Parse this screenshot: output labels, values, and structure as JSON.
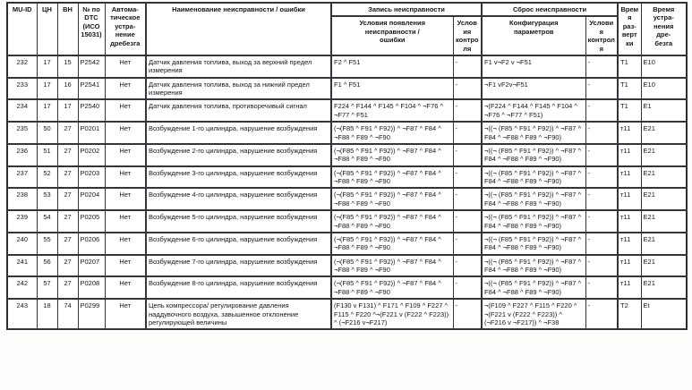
{
  "table": {
    "headers": {
      "muid": "MU-ID",
      "cn": "ЦН",
      "vn": "ВН",
      "dtc": "№ по\nDTC\n(ИСО\n15031)",
      "auto": "Автома-\nтическое\nустра-\nнение\nдребезга",
      "name": "Наименование неисправности / ошибки",
      "record_group": "Запись неисправности",
      "reset_group": "Сброс неисправности",
      "appear": "Условия появления\nнеисправности /\nошибки",
      "appear_ctrl": "Условия\nконтроля",
      "reset": "Конфигурация\nпараметров",
      "reset_ctrl": "Условия\nконтроля",
      "t_scan": "Время\nраз-\nвертки",
      "t_deb": "Время\nустра-\nнения\nдре-\nбезга"
    },
    "rows": [
      {
        "muid": "232",
        "cn": "17",
        "vn": "15",
        "dtc": "P2542",
        "auto": "Нет",
        "name": "Датчик давления топлива, выход за верхний предел измерения",
        "appear": "F2 ^ F51",
        "appear_ctrl": "-",
        "reset": "F1 v¬F2 v ¬F51",
        "reset_ctrl": "-",
        "t_scan": "T1",
        "t_deb": "E10"
      },
      {
        "muid": "233",
        "cn": "17",
        "vn": "16",
        "dtc": "P2541",
        "auto": "Нет",
        "name": "Датчик давления топлива, выход за нижний предел измерения",
        "appear": "F1 ^ F51",
        "appear_ctrl": "-",
        "reset": "¬F1 vF2v¬F51",
        "reset_ctrl": "-",
        "t_scan": "T1",
        "t_deb": "E10"
      },
      {
        "muid": "234",
        "cn": "17",
        "vn": "17",
        "dtc": "P2540",
        "auto": "Нет",
        "name": "Датчик давления топлива, противоречивый сигнал",
        "appear": "F224 ^ F144 ^ F145 ^ F104 ^ ¬F76 ^ ¬F77 ^ F51",
        "appear_ctrl": "-",
        "reset": "¬(F224 ^ F144 ^ F145 ^ F104 ^ ¬F76 ^ ¬F77 ^ F51)",
        "reset_ctrl": "-",
        "t_scan": "T1",
        "t_deb": "E1"
      },
      {
        "muid": "235",
        "cn": "50",
        "vn": "27",
        "dtc": "P0201",
        "auto": "Нет",
        "name": "Возбуждение 1-го цилиндра, нарушение возбуждения",
        "appear": "(¬(F85 ^ F91 ^ F92)) ^ ¬F87 ^ F84 ^ ¬F88 ^ F89 ^ ¬F90",
        "appear_ctrl": "-",
        "reset": "¬((¬ (F85 ^ F91 ^ F92)) ^ ¬F87 ^ F84 ^ ¬F88 ^ F89 ^ ¬F90)",
        "reset_ctrl": "-",
        "t_scan": "т11",
        "t_deb": "E21"
      },
      {
        "muid": "236",
        "cn": "51",
        "vn": "27",
        "dtc": "P0202",
        "auto": "Нет",
        "name": "Возбуждение 2-го цилиндра, нарушение возбуждения",
        "appear": "(¬(F85 ^ F91 ^ F92)) ^ ¬F87 ^ F84 ^ ¬F88 ^ F89 ^ ¬F90",
        "appear_ctrl": "-",
        "reset": "¬((¬ (F85 ^ F91 ^ F92)) ^ ¬F87 ^ F84 ^ ¬F88 ^ F89 ^ ¬F90)",
        "reset_ctrl": "-",
        "t_scan": "т11",
        "t_deb": "E21"
      },
      {
        "muid": "237",
        "cn": "52",
        "vn": "27",
        "dtc": "P0203",
        "auto": "Нет",
        "name": "Возбуждение 3-го цилиндра, нарушение возбуждения",
        "appear": "(¬(F85 ^ F91 ^ F92)) ^ ¬F87 ^ F84 ^ ¬F88 ^ F89 ^ ¬F90",
        "appear_ctrl": "-",
        "reset": "¬((¬ (F85 ^ F91 ^ F92)) ^ ¬F87 ^ F84 ^ ¬F88 ^ F89 ^ ¬F90)",
        "reset_ctrl": "-",
        "t_scan": "т11",
        "t_deb": "E21"
      },
      {
        "muid": "238",
        "cn": "53",
        "vn": "27",
        "dtc": "P0204",
        "auto": "Нет",
        "name": "Возбуждение 4-го цилиндра, нарушение возбуждения",
        "appear": "(¬(F85 ^ F91 ^ F92)) ^ ¬F87 ^ F84 ^ ¬F88 ^ F89 ^ ¬F90",
        "appear_ctrl": "-",
        "reset": "¬((¬ (F85 ^ F91 ^ F92)) ^ ¬F87 ^ F84 ^ ¬F88 ^ F89 ^ ¬F90)",
        "reset_ctrl": "-",
        "t_scan": "т11",
        "t_deb": "E21"
      },
      {
        "muid": "239",
        "cn": "54",
        "vn": "27",
        "dtc": "P0205",
        "auto": "Нет",
        "name": "Возбуждение 5-го цилиндра, нарушение возбуждения",
        "appear": "(¬(F85 ^ F91 ^ F92)) ^ ¬F87 ^ F84 ^ ¬F88 ^ F89 ^ ¬F90",
        "appear_ctrl": "-",
        "reset": "¬((¬ (F85 ^ F91 ^ F92)) ^ ¬F87 ^ F84 ^ ¬F88 ^ F89 ^ ¬F90)",
        "reset_ctrl": "-",
        "t_scan": "т11",
        "t_deb": "E21"
      },
      {
        "muid": "240",
        "cn": "55",
        "vn": "27",
        "dtc": "P0206",
        "auto": "Нет",
        "name": "Возбуждение 6-го цилиндра, нарушение возбуждения",
        "appear": "(¬(F85 ^ F91 ^ F92)) ^ ¬F87 ^ F84 ^ ¬F88 ^ F89 ^ ¬F90",
        "appear_ctrl": "-",
        "reset": "¬((¬ (F85 ^ F91 ^ F92)) ^ ¬F87 ^ F84 ^ ¬F88 ^ F89 ^ ¬F90)",
        "reset_ctrl": "-",
        "t_scan": "т11",
        "t_deb": "E21"
      },
      {
        "muid": "241",
        "cn": "56",
        "vn": "27",
        "dtc": "P0207",
        "auto": "Нет",
        "name": "Возбуждение 7-го цилиндра, нарушение возбуждения",
        "appear": "(¬(F85 ^ F91 ^ F92)) ^ ¬F87 ^ F84 ^ ¬F88 ^ F89 ^ ¬F90",
        "appear_ctrl": "-",
        "reset": "¬((¬ (F85 ^ F91 ^ F92)) ^ ¬F87 ^ F84 ^ ¬F88 ^ F89 ^ ¬F90)",
        "reset_ctrl": "-",
        "t_scan": "т11",
        "t_deb": "E21"
      },
      {
        "muid": "242",
        "cn": "57",
        "vn": "27",
        "dtc": "P0208",
        "auto": "Нет",
        "name": "Возбуждение 8-го цилиндра, нарушение возбуждения",
        "appear": "(¬(F85 ^ F91 ^ F92)) ^ ¬F87 ^ F84 ^ ¬F88 ^ F89 ^ ¬F90",
        "appear_ctrl": "-",
        "reset": "¬((¬ (F85 ^ F91 ^ F92)) ^ ¬F87 ^ F84 ^ ¬F88 ^ F89 ^ ¬F90)",
        "reset_ctrl": "-",
        "t_scan": "т11",
        "t_deb": "E21"
      },
      {
        "muid": "243",
        "cn": "18",
        "vn": "74",
        "dtc": "P0299",
        "auto": "Нет",
        "name": "Цепь компрессора/ регулирование давления наддувочного воздуха, завышенное отклонение регулирующей величины",
        "appear": "(F130 v F131) ^ F171 ^ F109 ^ F227 ^ F115 ^ F220 ^¬(F221 v (F222 ^ F223)) ^ (¬F216 v¬F217)",
        "appear_ctrl": "-",
        "reset": "¬(F109 ^ F227 ^ F115 ^ F220 ^ ¬(F221 v (F222 ^ F223)) ^ (¬F216 v ¬F217)) ^ ¬F38",
        "reset_ctrl": "-",
        "t_scan": "T2",
        "t_deb": "Et"
      }
    ]
  }
}
